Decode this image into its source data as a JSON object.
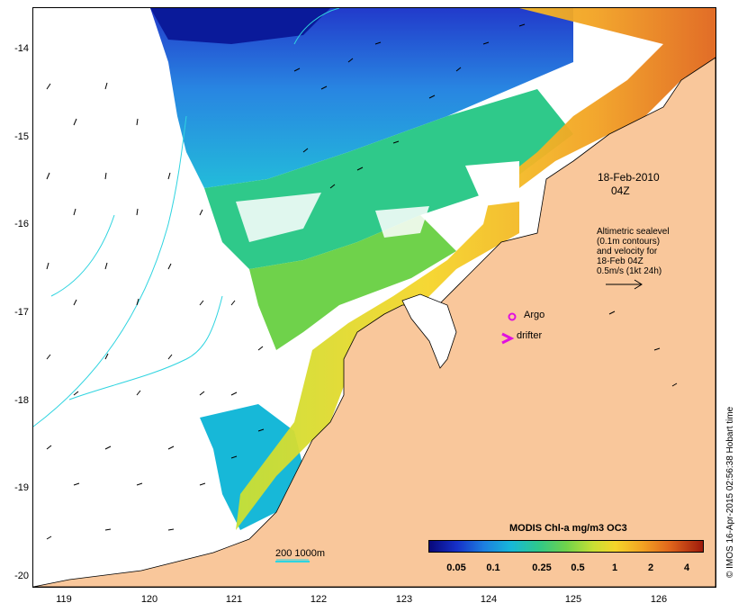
{
  "map": {
    "date_line1": "18-Feb-2010",
    "date_line2": "04Z",
    "altimetry_note": [
      "Altimetric sealevel",
      "(0.1m contours)",
      "and velocity for",
      "18-Feb 04Z",
      "0.5m/s (1kt 24h)"
    ],
    "argo_label": "Argo",
    "drifter_label": "drifter",
    "drifter_symbol": ">",
    "scale_label": "200  1000m",
    "credit": "© IMOS 16-Apr-2015 02:56:38 Hobart time",
    "y_axis_labels": [
      "-14",
      "-15",
      "-16",
      "-17",
      "-18",
      "-19",
      "-20"
    ],
    "x_axis_labels": [
      "119",
      "120",
      "121",
      "122",
      "123",
      "124",
      "125",
      "126"
    ],
    "colorbar": {
      "title": "MODIS Chl-a mg/m3 OC3",
      "ticks": [
        "0.05",
        "0.1",
        "0.25",
        "0.5",
        "1",
        "2",
        "4"
      ]
    },
    "colors": {
      "land": "#f9c79b",
      "ocean_nodata": "#ffffff",
      "isobath": "#2fd4e0",
      "argo": "#e010e0",
      "drifter": "#e010e0"
    }
  }
}
